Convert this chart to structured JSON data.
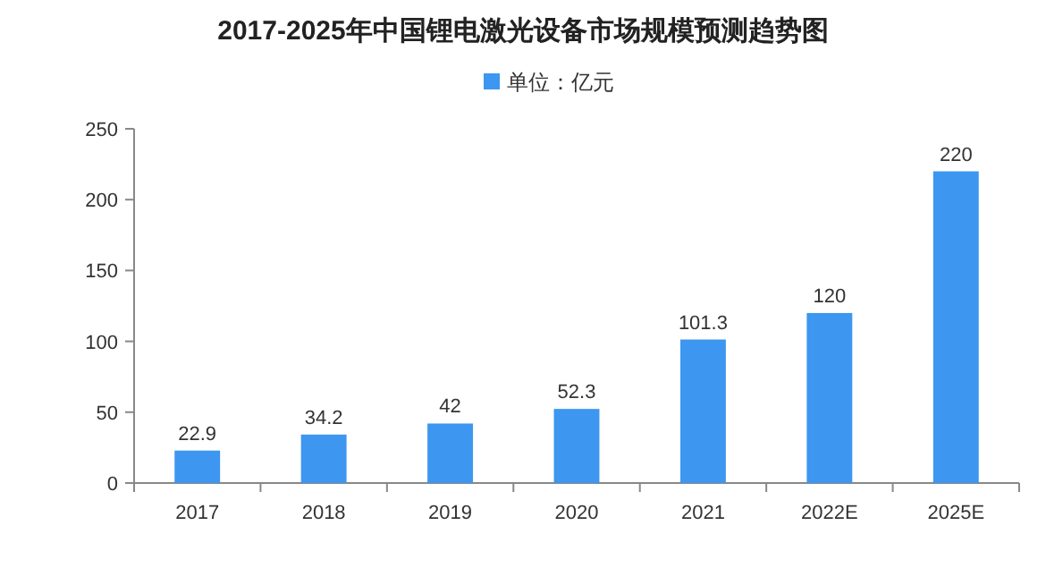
{
  "chart_data": {
    "type": "bar",
    "title": "2017-2025年中国锂电激光设备市场规模预测趋势图",
    "categories": [
      "2017",
      "2018",
      "2019",
      "2020",
      "2021",
      "2022E",
      "2025E"
    ],
    "series": [
      {
        "name": "单位：亿元",
        "color": "#3d96f0",
        "values": [
          22.9,
          34.2,
          42,
          52.3,
          101.3,
          120,
          220
        ]
      }
    ],
    "ylim": [
      0,
      250
    ],
    "yticks": [
      0,
      50,
      100,
      150,
      200,
      250
    ],
    "data_labels": true,
    "legend": "top"
  }
}
